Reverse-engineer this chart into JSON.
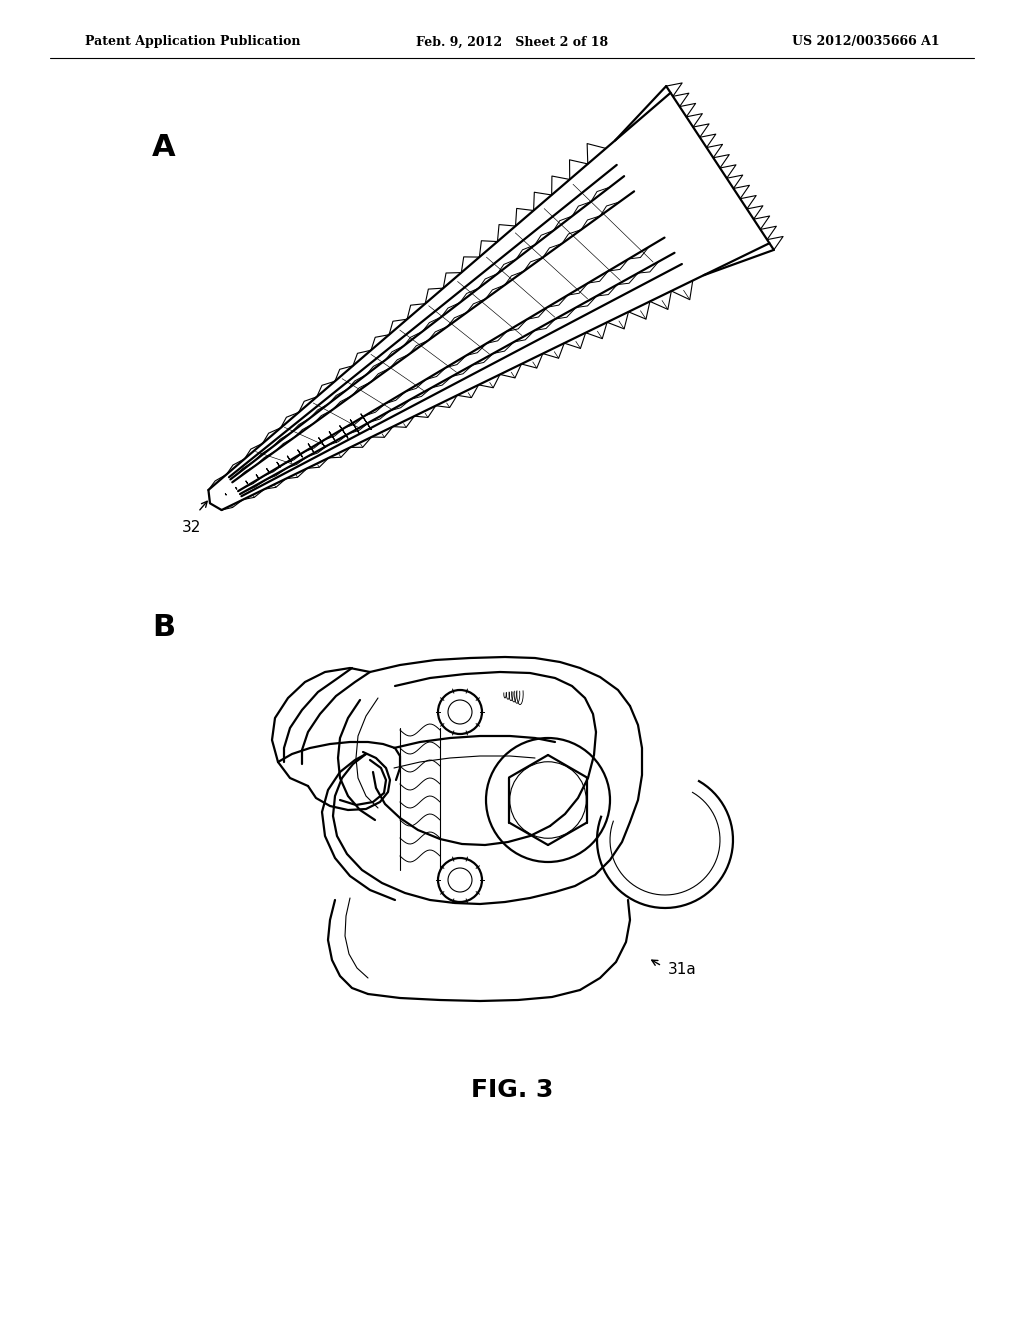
{
  "background_color": "#ffffff",
  "header_left": "Patent Application Publication",
  "header_center": "Feb. 9, 2012   Sheet 2 of 18",
  "header_right": "US 2012/0035666 A1",
  "label_A": "A",
  "label_B": "B",
  "label_32": "32",
  "label_31a": "31a",
  "figure_caption": "FIG. 3",
  "line_color": "#000000",
  "lw_main": 1.6,
  "lw_thin": 0.8,
  "lw_header": 0.7
}
